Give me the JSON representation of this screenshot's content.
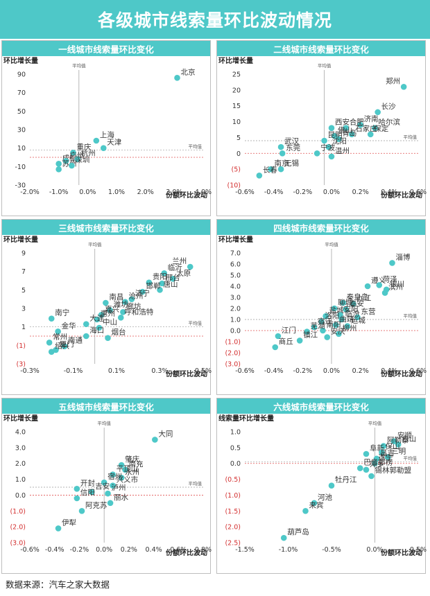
{
  "header": {
    "title": "各级城市线索量环比波动情况"
  },
  "source": "数据来源：汽车之家大数据",
  "colors": {
    "accent": "#4ec8c8",
    "point": "#4ec8c8",
    "avg_line": "#999999",
    "zero_line": "#e05050",
    "negative_tick": "#d32f2f"
  },
  "chart_data": [
    {
      "type": "scatter",
      "title": "一线城市线索量环比变化",
      "ylabel": "环比增长量",
      "xlabel": "份额环比波动",
      "avg_x_label": "平均值",
      "avg_y_label": "平均值",
      "xlim": [
        -2.0,
        4.0
      ],
      "ylim": [
        -30,
        90
      ],
      "x_avg": -0.3,
      "y_avg": 8,
      "xticks": [
        -2.0,
        -1.0,
        0.0,
        1.0,
        2.0,
        3.0,
        4.0
      ],
      "xtick_labels": [
        "-2.0%",
        "-1.0%",
        "0.0%",
        "1.0%",
        "2.0%",
        "3.0%",
        "4.0%"
      ],
      "yticks": [
        90,
        70,
        50,
        30,
        10,
        -10,
        -30
      ],
      "ytick_labels": [
        "90",
        "70",
        "50",
        "30",
        "10",
        "-10",
        "-30"
      ],
      "points": [
        {
          "label": "北京",
          "x": 3.1,
          "y": 86
        },
        {
          "label": "上海",
          "x": 0.3,
          "y": 18
        },
        {
          "label": "天津",
          "x": 0.55,
          "y": 10
        },
        {
          "label": "重庆",
          "x": -0.5,
          "y": 5
        },
        {
          "label": "成都",
          "x": -1.0,
          "y": -7
        },
        {
          "label": "广州",
          "x": -0.75,
          "y": -4
        },
        {
          "label": "杭州",
          "x": -0.35,
          "y": -2
        },
        {
          "label": "苏州",
          "x": -1.0,
          "y": -13
        },
        {
          "label": "深圳",
          "x": -0.55,
          "y": -9
        }
      ]
    },
    {
      "type": "scatter",
      "title": "二线城市线索量环比变化",
      "ylabel": "环比增长量",
      "xlabel": "份额环比波动",
      "avg_x_label": "平均值",
      "avg_y_label": "平均值",
      "xlim": [
        -0.6,
        0.6
      ],
      "ylim": [
        -10,
        25
      ],
      "x_avg": -0.05,
      "y_avg": 4,
      "xticks": [
        -0.6,
        -0.4,
        -0.2,
        0.0,
        0.2,
        0.4,
        0.6
      ],
      "xtick_labels": [
        "-0.6%",
        "-0.4%",
        "-0.2%",
        "0.0%",
        "0.2%",
        "0.4%",
        "0.6%"
      ],
      "yticks": [
        25,
        20,
        15,
        10,
        5,
        0,
        -5,
        -10
      ],
      "ytick_labels": [
        "25",
        "20",
        "15",
        "10",
        "5",
        "0",
        "(5)",
        "(10)"
      ],
      "points": [
        {
          "label": "郑州",
          "x": 0.5,
          "y": 21
        },
        {
          "label": "长沙",
          "x": 0.32,
          "y": 13
        },
        {
          "label": "济南",
          "x": 0.2,
          "y": 9
        },
        {
          "label": "哈尔滨",
          "x": 0.3,
          "y": 8
        },
        {
          "label": "保定",
          "x": 0.27,
          "y": 6
        },
        {
          "label": "西安",
          "x": 0.0,
          "y": 8
        },
        {
          "label": "合肥",
          "x": 0.1,
          "y": 8
        },
        {
          "label": "石家庄",
          "x": 0.14,
          "y": 6
        },
        {
          "label": "佛山",
          "x": 0.02,
          "y": 5.5
        },
        {
          "label": "青岛",
          "x": 0.05,
          "y": 4.5
        },
        {
          "label": "昆明",
          "x": -0.05,
          "y": 4
        },
        {
          "label": "沈阳",
          "x": -0.02,
          "y": 2
        },
        {
          "label": "武汉",
          "x": -0.35,
          "y": 2
        },
        {
          "label": "东莞",
          "x": -0.34,
          "y": 0
        },
        {
          "label": "宁波",
          "x": -0.1,
          "y": 0
        },
        {
          "label": "温州",
          "x": 0.0,
          "y": -1
        },
        {
          "label": "南京",
          "x": -0.42,
          "y": -5
        },
        {
          "label": "无锡",
          "x": -0.35,
          "y": -5
        },
        {
          "label": "长春",
          "x": -0.5,
          "y": -7
        }
      ]
    },
    {
      "type": "scatter",
      "title": "三线城市线索量环比变化",
      "ylabel": "环比增长量",
      "xlabel": "份额环比波动",
      "avg_x_label": "平均值",
      "avg_y_label": "平均值",
      "xlim": [
        -0.3,
        0.5
      ],
      "ylim": [
        -3,
        9
      ],
      "x_avg": 0.0,
      "y_avg": 1.0,
      "xticks": [
        -0.3,
        -0.1,
        0.1,
        0.3,
        0.5
      ],
      "xtick_labels": [
        "-0.3%",
        "-0.1%",
        "0.1%",
        "0.3%",
        "0.5%"
      ],
      "yticks": [
        9,
        7,
        5,
        3,
        1,
        -1,
        -3
      ],
      "ytick_labels": [
        "9",
        "7",
        "5",
        "3",
        "1",
        "(1)",
        "(3)"
      ],
      "points": [
        {
          "label": "兰州",
          "x": 0.44,
          "y": 7.5
        },
        {
          "label": "临沂",
          "x": 0.32,
          "y": 6.8
        },
        {
          "label": "太原",
          "x": 0.36,
          "y": 6.2
        },
        {
          "label": "贵阳",
          "x": 0.25,
          "y": 5.8
        },
        {
          "label": "邢台",
          "x": 0.31,
          "y": 5.7
        },
        {
          "label": "唐山",
          "x": 0.3,
          "y": 5.0
        },
        {
          "label": "邯郸",
          "x": 0.22,
          "y": 4.8
        },
        {
          "label": "济宁",
          "x": 0.17,
          "y": 4.0
        },
        {
          "label": "南昌",
          "x": 0.05,
          "y": 3.6
        },
        {
          "label": "沧州",
          "x": 0.14,
          "y": 3.7
        },
        {
          "label": "潍坊",
          "x": 0.07,
          "y": 2.8
        },
        {
          "label": "廊坊",
          "x": 0.13,
          "y": 2.6
        },
        {
          "label": "嘉兴",
          "x": 0.03,
          "y": 2.3
        },
        {
          "label": "呼和浩特",
          "x": 0.12,
          "y": 2.0
        },
        {
          "label": "惠州",
          "x": 0.01,
          "y": 1.8
        },
        {
          "label": "大连",
          "x": -0.04,
          "y": 1.3
        },
        {
          "label": "中山",
          "x": 0.02,
          "y": 0.9
        },
        {
          "label": "南宁",
          "x": -0.2,
          "y": 1.9
        },
        {
          "label": "金华",
          "x": -0.17,
          "y": 0.5
        },
        {
          "label": "海口",
          "x": -0.04,
          "y": 0.0
        },
        {
          "label": "烟台",
          "x": 0.06,
          "y": -0.2
        },
        {
          "label": "常州",
          "x": -0.21,
          "y": -0.7
        },
        {
          "label": "南通",
          "x": -0.14,
          "y": -1.1
        },
        {
          "label": "厦门",
          "x": -0.18,
          "y": -1.5
        },
        {
          "label": "绍兴",
          "x": -0.2,
          "y": -1.7
        }
      ]
    },
    {
      "type": "scatter",
      "title": "四线城市线索量环比变化",
      "ylabel": "环比增长量",
      "xlabel": "份额环比波动",
      "avg_x_label": "平均值",
      "avg_y_label": "平均值",
      "xlim": [
        -0.6,
        0.6
      ],
      "ylim": [
        -3.0,
        7.0
      ],
      "x_avg": 0.0,
      "y_avg": 1.0,
      "xticks": [
        -0.6,
        -0.4,
        -0.2,
        0.0,
        0.2,
        0.4,
        0.6
      ],
      "xtick_labels": [
        "-0.6%",
        "-0.4%",
        "-0.2%",
        "0.0%",
        "0.2%",
        "0.4%",
        "0.6%"
      ],
      "yticks": [
        7,
        6,
        5,
        4,
        3,
        2,
        1,
        0,
        -1,
        -2,
        -3
      ],
      "ytick_labels": [
        "7.0",
        "6.0",
        "5.0",
        "4.0",
        "3.0",
        "2.0",
        "1.0",
        "0.0",
        "(1.0)",
        "(2.0)",
        "(3.0)"
      ],
      "points": [
        {
          "label": "淄博",
          "x": 0.42,
          "y": 6.1
        },
        {
          "label": "遵义",
          "x": 0.25,
          "y": 4.0
        },
        {
          "label": "菏泽",
          "x": 0.33,
          "y": 4.1
        },
        {
          "label": "银川",
          "x": 0.38,
          "y": 3.7
        },
        {
          "label": "滨州",
          "x": 0.37,
          "y": 3.4
        },
        {
          "label": "秦皇岛",
          "x": 0.08,
          "y": 2.5
        },
        {
          "label": "九江",
          "x": 0.15,
          "y": 2.4
        },
        {
          "label": "聊城",
          "x": 0.02,
          "y": 2.0
        },
        {
          "label": "泰安",
          "x": 0.1,
          "y": 1.9
        },
        {
          "label": "东营",
          "x": 0.18,
          "y": 1.2
        },
        {
          "label": "盐城",
          "x": -0.04,
          "y": 1.3
        },
        {
          "label": "安阳",
          "x": 0.06,
          "y": 1.4
        },
        {
          "label": "临汾",
          "x": 0.07,
          "y": 1.0
        },
        {
          "label": "洛阳",
          "x": -0.07,
          "y": 0.8
        },
        {
          "label": "宿迁",
          "x": -0.12,
          "y": 0.3
        },
        {
          "label": "曲靖",
          "x": 0.03,
          "y": 0.5
        },
        {
          "label": "运城",
          "x": 0.11,
          "y": 0.4
        },
        {
          "label": "南阳",
          "x": -0.06,
          "y": 0.0
        },
        {
          "label": "芜湖",
          "x": -0.17,
          "y": -0.1
        },
        {
          "label": "柳州",
          "x": 0.05,
          "y": -0.3
        },
        {
          "label": "安庆",
          "x": -0.03,
          "y": -0.6
        },
        {
          "label": "江门",
          "x": -0.37,
          "y": -0.5
        },
        {
          "label": "商丘",
          "x": -0.39,
          "y": -1.5
        },
        {
          "label": "镇江",
          "x": -0.22,
          "y": -0.9
        }
      ]
    },
    {
      "type": "scatter",
      "title": "五线城市线索量环比变化",
      "ylabel": "环比增长量",
      "xlabel": "份额环比波动",
      "avg_x_label": "平均值",
      "avg_y_label": "平均值",
      "xlim": [
        -0.6,
        0.8
      ],
      "ylim": [
        -3.0,
        4.0
      ],
      "x_avg": 0.0,
      "y_avg": 0.5,
      "xticks": [
        -0.6,
        -0.4,
        -0.2,
        0.0,
        0.2,
        0.4,
        0.6,
        0.8
      ],
      "xtick_labels": [
        "-0.6%",
        "-0.4%",
        "-0.2%",
        "0.0%",
        "0.2%",
        "0.4%",
        "0.6%",
        "0.8%"
      ],
      "yticks": [
        4,
        3,
        2,
        1,
        0,
        -1,
        -2,
        -3
      ],
      "ytick_labels": [
        "4.0",
        "3.0",
        "2.0",
        "1.0",
        "0.0",
        "(1.0)",
        "(2.0)",
        "(3.0)"
      ],
      "points": [
        {
          "label": "大同",
          "x": 0.41,
          "y": 3.5
        },
        {
          "label": "肇庆",
          "x": 0.14,
          "y": 1.9
        },
        {
          "label": "南充",
          "x": 0.17,
          "y": 1.6
        },
        {
          "label": "平顶山",
          "x": 0.07,
          "y": 1.3
        },
        {
          "label": "永州",
          "x": 0.14,
          "y": 1.1
        },
        {
          "label": "宿州",
          "x": 0.0,
          "y": 0.8
        },
        {
          "label": "兴义市",
          "x": 0.07,
          "y": 0.6
        },
        {
          "label": "开封",
          "x": -0.22,
          "y": 0.4
        },
        {
          "label": "吉安",
          "x": -0.1,
          "y": 0.2
        },
        {
          "label": "泸州",
          "x": 0.03,
          "y": 0.1
        },
        {
          "label": "信阳",
          "x": -0.22,
          "y": -0.2
        },
        {
          "label": "丽水",
          "x": 0.05,
          "y": -0.5
        },
        {
          "label": "阿克苏",
          "x": -0.18,
          "y": -1.0
        },
        {
          "label": "伊犁",
          "x": -0.37,
          "y": -2.1
        }
      ]
    },
    {
      "type": "scatter",
      "title": "六线城市线索量环比变化",
      "ylabel": "线索量环比增长量",
      "xlabel": "份额环比波动",
      "avg_x_label": "平均值",
      "avg_y_label": "平均值",
      "xlim": [
        -1.5,
        0.5
      ],
      "ylim": [
        -2.5,
        1.0
      ],
      "x_avg": 0.0,
      "y_avg": 0.05,
      "xticks": [
        -1.5,
        -1.0,
        -0.5,
        0.0,
        0.5
      ],
      "xtick_labels": [
        "-1.5%",
        "-1.0%",
        "-0.5%",
        "0.0%",
        "0.5%"
      ],
      "yticks": [
        1.0,
        0.5,
        0.0,
        -0.5,
        -1.0,
        -1.5,
        -2.0,
        -2.5
      ],
      "ytick_labels": [
        "1.0",
        "0.5",
        "0.0",
        "(0.5)",
        "(1.0)",
        "(1.5)",
        "(2.0)",
        "(2.5)"
      ],
      "points": [
        {
          "label": "安顺",
          "x": 0.22,
          "y": 0.7
        },
        {
          "label": "白山",
          "x": 0.27,
          "y": 0.6
        },
        {
          "label": "阿勒泰",
          "x": 0.1,
          "y": 0.55
        },
        {
          "label": "阜新",
          "x": -0.1,
          "y": 0.3
        },
        {
          "label": "保山",
          "x": 0.08,
          "y": 0.35
        },
        {
          "label": "三明",
          "x": 0.15,
          "y": 0.2
        },
        {
          "label": "昌吉",
          "x": 0.02,
          "y": 0.15
        },
        {
          "label": "遂宁",
          "x": 0.0,
          "y": 0.0
        },
        {
          "label": "巴音郭楞",
          "x": -0.17,
          "y": -0.15
        },
        {
          "label": "萍乡",
          "x": -0.1,
          "y": -0.2
        },
        {
          "label": "锡林郭勒盟",
          "x": -0.04,
          "y": -0.4
        },
        {
          "label": "牡丹江",
          "x": -0.5,
          "y": -0.7
        },
        {
          "label": "河池",
          "x": -0.7,
          "y": -1.25
        },
        {
          "label": "来宾",
          "x": -0.8,
          "y": -1.5
        },
        {
          "label": "葫芦岛",
          "x": -1.05,
          "y": -2.35
        }
      ]
    }
  ]
}
